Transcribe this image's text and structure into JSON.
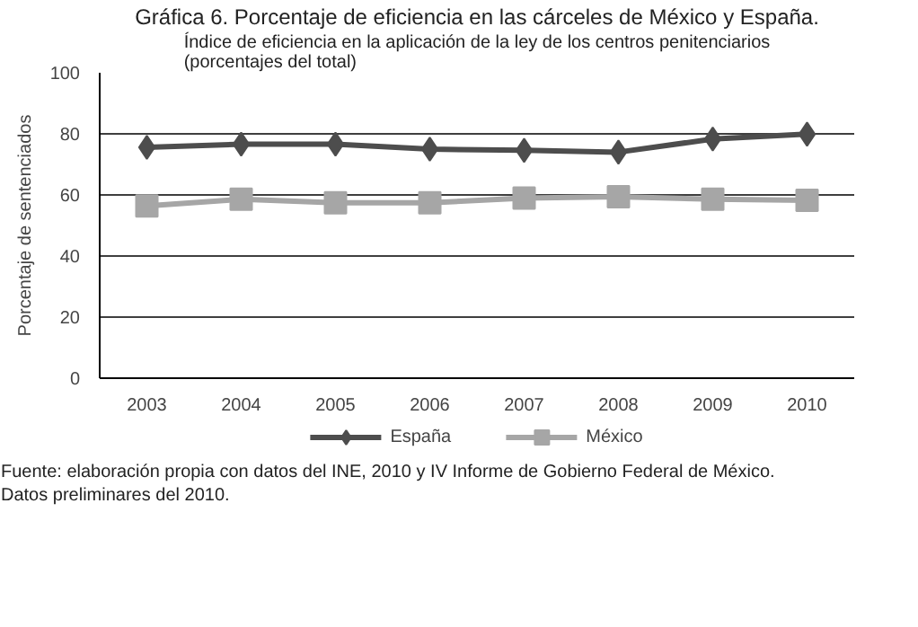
{
  "chart_data": {
    "type": "line",
    "title": "Gráfica 6. Porcentaje de eficiencia en las cárceles de México y España.",
    "subtitle": "Índice de eficiencia en la aplicación de la ley de los centros penitenciarios\n(porcentajes del total)",
    "ylabel": "Porcentaje de sentenciados",
    "categories": [
      "2003",
      "2004",
      "2005",
      "2006",
      "2007",
      "2008",
      "2009",
      "2010"
    ],
    "series": [
      {
        "name": "España",
        "color": "#4d4d4d",
        "marker": "diamond",
        "values": [
          75.6,
          76.6,
          76.6,
          75,
          74.6,
          74,
          78.3,
          79.9
        ]
      },
      {
        "name": "México",
        "color": "#a6a6a6",
        "marker": "square",
        "values": [
          56.4,
          58.6,
          57.4,
          57.4,
          59,
          59.4,
          58.6,
          58.2
        ]
      }
    ],
    "ylim": [
      0,
      100
    ],
    "yticks": [
      0,
      20,
      40,
      60,
      80,
      100
    ],
    "grid": "y",
    "legend": "bottom",
    "annotations": [
      "Fuente: elaboración propia con datos del INE, 2010 y IV Informe de Gobierno Federal de México.",
      "Datos preliminares del 2010."
    ]
  }
}
